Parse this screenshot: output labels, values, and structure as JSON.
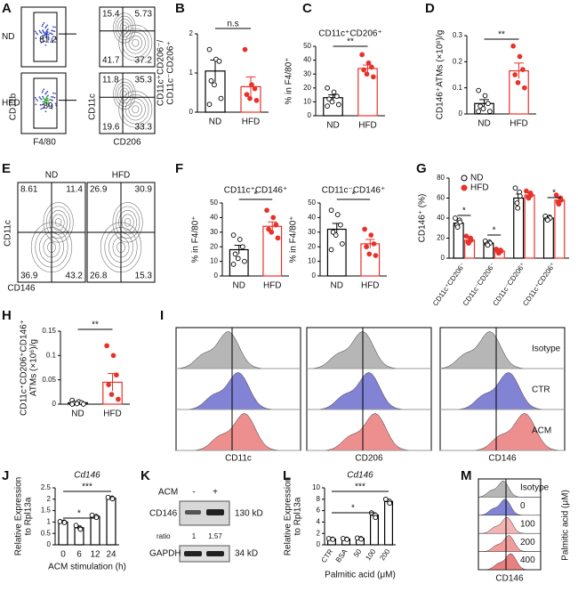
{
  "panels": {
    "A": {
      "letter": "A",
      "rows": [
        "ND",
        "HFD"
      ],
      "x_label": "F4/80",
      "y_label": "CD11b",
      "gates": [
        "81.2",
        "89"
      ],
      "quadrant_x_label": "CD206",
      "quadrant_y_label": "CD11c",
      "quadrants": [
        [
          "15.4",
          "5.73",
          "41.7",
          "37.2"
        ],
        [
          "11.8",
          "35.3",
          "19.6",
          "33.3"
        ]
      ]
    },
    "B": {
      "letter": "B",
      "chart": {
        "type": "bar",
        "ylabel": [
          "CD11c⁺CD206⁻/",
          "CD11c⁻CD206⁺"
        ],
        "categories": [
          "ND",
          "HFD"
        ],
        "values": [
          1.05,
          0.65
        ],
        "errors": [
          0.28,
          0.25
        ],
        "colors": [
          "#000000",
          "#e8312a"
        ],
        "points": [
          [
            1.6,
            1.35,
            1.3,
            0.8,
            0.7,
            0.35,
            0.2
          ],
          [
            1.6,
            0.7,
            0.6,
            0.45,
            0.35,
            0.3
          ]
        ],
        "ylim": [
          0,
          2
        ],
        "yticks": [
          0,
          1,
          2
        ],
        "annotations": [
          "n.s"
        ]
      }
    },
    "C": {
      "letter": "C",
      "chart": {
        "type": "bar",
        "title": "CD11c⁺CD206⁺",
        "ylabel": [
          "% in F4/80⁺"
        ],
        "categories": [
          "ND",
          "HFD"
        ],
        "values": [
          13,
          34
        ],
        "errors": [
          2,
          2.5
        ],
        "colors": [
          "#000000",
          "#e8312a"
        ],
        "points": [
          [
            20,
            17,
            14,
            12,
            10,
            8,
            7
          ],
          [
            44,
            38,
            35,
            33,
            30,
            28
          ]
        ],
        "ylim": [
          0,
          50
        ],
        "yticks": [
          0,
          10,
          20,
          30,
          40,
          50
        ],
        "annotations": [
          "**"
        ]
      }
    },
    "D": {
      "letter": "D",
      "chart": {
        "type": "bar",
        "ylabel": [
          "CD146⁺ATMs (×10⁶)/g"
        ],
        "categories": [
          "ND",
          "HFD"
        ],
        "values": [
          0.04,
          0.165
        ],
        "errors": [
          0.015,
          0.03
        ],
        "colors": [
          "#000000",
          "#e8312a"
        ],
        "points": [
          [
            0.09,
            0.07,
            0.04,
            0.03,
            0.02,
            0.01,
            0.01
          ],
          [
            0.26,
            0.22,
            0.17,
            0.15,
            0.12,
            0.1
          ]
        ],
        "ylim": [
          0,
          0.3
        ],
        "yticks": [
          0,
          0.1,
          0.2,
          0.3
        ],
        "annotations": [
          "**"
        ]
      }
    },
    "E": {
      "letter": "E",
      "columns": [
        "ND",
        "HFD"
      ],
      "x_label": "CD146",
      "y_label": "CD11c",
      "quadrants": [
        [
          "8.61",
          "11.4",
          "36.9",
          "43.2"
        ],
        [
          "26.9",
          "30.9",
          "26.8",
          "15.3"
        ]
      ]
    },
    "F": {
      "letter": "F",
      "charts": [
        {
          "type": "bar",
          "title": "CD11c⁺CD146⁺",
          "ylabel": [
            "% in F4/80⁺"
          ],
          "categories": [
            "ND",
            "HFD"
          ],
          "values": [
            18,
            34
          ],
          "errors": [
            3,
            3
          ],
          "colors": [
            "#000000",
            "#e8312a"
          ],
          "points": [
            [
              28,
              25,
              20,
              15,
              12,
              10,
              8
            ],
            [
              45,
              40,
              35,
              32,
              30,
              26
            ]
          ],
          "ylim": [
            0,
            50
          ],
          "yticks": [
            0,
            10,
            20,
            30,
            40,
            50
          ],
          "annotations": [
            "*"
          ]
        },
        {
          "type": "bar",
          "title": "CD11c⁻CD146⁺",
          "ylabel": [
            "% in F4/80⁺"
          ],
          "categories": [
            "ND",
            "HFD"
          ],
          "values": [
            32,
            22
          ],
          "errors": [
            4,
            3
          ],
          "colors": [
            "#000000",
            "#e8312a"
          ],
          "points": [
            [
              45,
              42,
              35,
              30,
              28,
              22,
              18
            ],
            [
              32,
              28,
              22,
              20,
              15,
              14
            ]
          ],
          "ylim": [
            0,
            50
          ],
          "yticks": [
            0,
            10,
            20,
            30,
            40,
            50
          ],
          "annotations": [
            "*"
          ]
        }
      ]
    },
    "G": {
      "letter": "G",
      "chart": {
        "type": "bar",
        "ylabel": [
          "CD146⁺ (%)"
        ],
        "categories": [
          "CD11c⁺CD206⁻",
          "CD11c⁻CD206⁻",
          "CD11c⁻CD206⁺",
          "CD11c⁺CD206⁺"
        ],
        "series": [
          {
            "name": "ND",
            "color": "#000000",
            "values": [
              35,
              15,
              60,
              40
            ],
            "errors": [
              2,
              1,
              4,
              1.5
            ],
            "points": [
              [
                40,
                38,
                36,
                33,
                31
              ],
              [
                17,
                16,
                15,
                14,
                13
              ],
              [
                70,
                66,
                62,
                55,
                50
              ],
              [
                42,
                41,
                40,
                39,
                38
              ]
            ]
          },
          {
            "name": "HFD",
            "color": "#e8312a",
            "values": [
              18,
              7,
              63,
              58
            ],
            "errors": [
              1.5,
              1,
              2,
              2
            ],
            "points": [
              [
                22,
                20,
                18,
                16,
                15
              ],
              [
                9,
                8,
                7,
                6,
                5
              ],
              [
                67,
                65,
                63,
                61,
                60
              ],
              [
                63,
                60,
                58,
                56,
                54
              ]
            ]
          }
        ],
        "ylim": [
          0,
          80
        ],
        "yticks": [
          0,
          20,
          40,
          60,
          80
        ],
        "annotations": [
          "*",
          "*",
          "*"
        ]
      }
    },
    "H": {
      "letter": "H",
      "chart": {
        "type": "bar",
        "ylabel": [
          "CD11c⁺CD206⁺CD146⁺",
          "ATMs (×10⁶)/g"
        ],
        "categories": [
          "ND",
          "HFD"
        ],
        "values": [
          0.003,
          0.045
        ],
        "errors": [
          0.002,
          0.018
        ],
        "colors": [
          "#000000",
          "#e8312a"
        ],
        "points": [
          [
            0.008,
            0.005,
            0.003,
            0.002,
            0.001,
            0,
            0
          ],
          [
            0.12,
            0.1,
            0.06,
            0.04,
            0.02,
            0.01
          ]
        ],
        "ylim": [
          0,
          0.15
        ],
        "yticks": [
          0,
          0.05,
          0.1,
          0.15
        ],
        "annotations": [
          "**"
        ]
      }
    },
    "I": {
      "letter": "I",
      "markers": [
        "CD11c",
        "CD206",
        "CD146"
      ],
      "conditions": [
        "Isotype",
        "CTR",
        "ACM"
      ]
    },
    "J": {
      "letter": "J",
      "chart": {
        "type": "bar",
        "title": "Cd146",
        "ylabel": [
          "Relative Expression",
          "to Rpl13a"
        ],
        "xlabel": "ACM stimulation (h)",
        "categories": [
          "0",
          "6",
          "12",
          "24"
        ],
        "values": [
          1,
          0.75,
          1.25,
          2.05
        ],
        "errors": [
          0.03,
          0.08,
          0.05,
          0.03
        ],
        "colors": [
          "#000000",
          "#000000",
          "#000000",
          "#000000"
        ],
        "points": [
          [
            1.02,
            1,
            0.98
          ],
          [
            0.85,
            0.72,
            0.68
          ],
          [
            1.3,
            1.25,
            1.2
          ],
          [
            2.08,
            2.05,
            2.02
          ]
        ],
        "ylim": [
          0,
          2.5
        ],
        "yticks": [
          0,
          0.5,
          1,
          1.5,
          2,
          2.5
        ],
        "annotations": [
          "*",
          "***"
        ]
      }
    },
    "K": {
      "letter": "K",
      "treatment": "ACM",
      "lanes": [
        "-",
        "+"
      ],
      "target": "CD146",
      "target_size": "130 kD",
      "ratio_label": "ratio",
      "ratios": [
        "1",
        "1.57"
      ],
      "control": "GAPDH",
      "control_size": "34 kD"
    },
    "L": {
      "letter": "L",
      "chart": {
        "type": "bar",
        "title": "Cd146",
        "ylabel": [
          "Relative Expression",
          "to Rpl13a"
        ],
        "xlabel": "Palmitic acid (μM)",
        "categories": [
          "CTR",
          "BSA",
          "50",
          "100",
          "200"
        ],
        "values": [
          1,
          1,
          1.1,
          5.2,
          7.6
        ],
        "errors": [
          0.1,
          0.1,
          0.1,
          0.4,
          0.4
        ],
        "colors": [
          "#000000",
          "#000000",
          "#000000",
          "#000000",
          "#000000"
        ],
        "points": [
          [
            1.1,
            1,
            0.95
          ],
          [
            1.1,
            1,
            0.95
          ],
          [
            1.2,
            1.1,
            1.0
          ],
          [
            5.6,
            5.2,
            4.8
          ],
          [
            8,
            7.6,
            7.3
          ]
        ],
        "ylim": [
          0,
          10
        ],
        "yticks": [
          0,
          2,
          4,
          6,
          8,
          10
        ],
        "annotations": [
          "*",
          "***"
        ]
      }
    },
    "M": {
      "letter": "M",
      "conditions": [
        "Isotype",
        "0",
        "100",
        "200",
        "400"
      ],
      "x_label": "CD146",
      "y_label": "Palmitic acid (μM)"
    }
  }
}
